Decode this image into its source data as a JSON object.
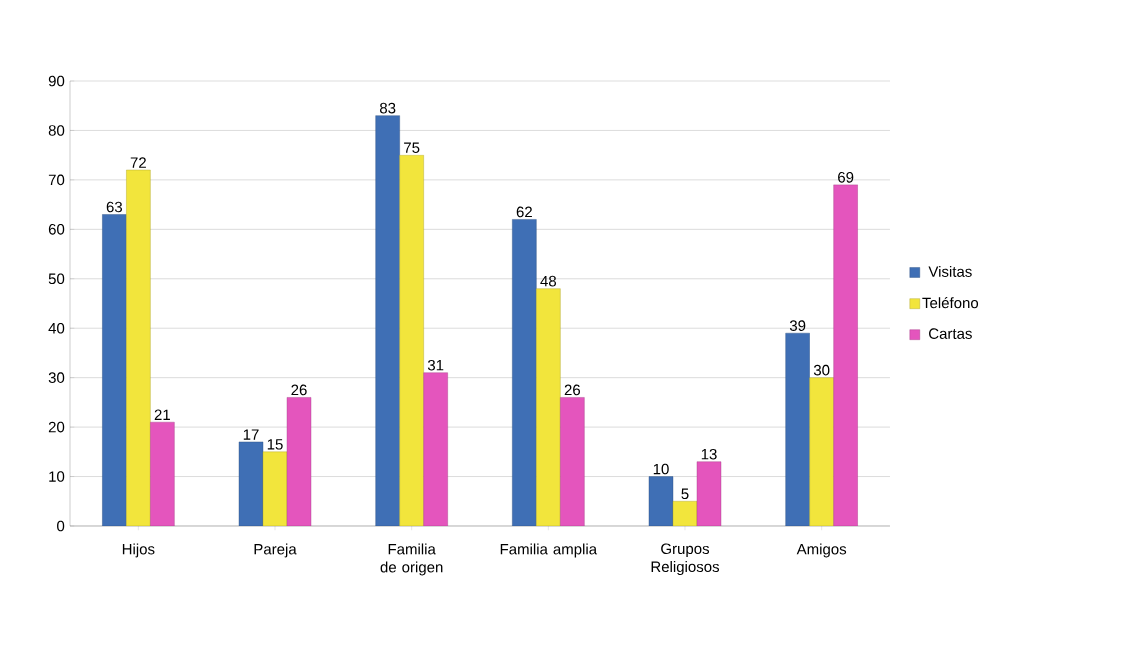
{
  "chart_data": {
    "type": "bar",
    "categories": [
      "Hijos",
      "Pareja",
      "Familia de origen",
      "Familia amplia",
      "Grupos Religiosos",
      "Amigos"
    ],
    "series": [
      {
        "name": "Visitas",
        "color": "#3f6fb5",
        "values": [
          63,
          17,
          83,
          62,
          10,
          39
        ]
      },
      {
        "name": "Teléfono",
        "color": "#f2e53c",
        "values": [
          72,
          15,
          75,
          48,
          5,
          30
        ]
      },
      {
        "name": "Cartas",
        "color": "#e455bd",
        "values": [
          21,
          26,
          31,
          26,
          13,
          69
        ]
      }
    ],
    "ylim": [
      0,
      90
    ],
    "yticks": [
      0,
      10,
      20,
      30,
      40,
      50,
      60,
      70,
      80,
      90
    ],
    "grid": "y",
    "legend": "right",
    "data_labels": true
  }
}
